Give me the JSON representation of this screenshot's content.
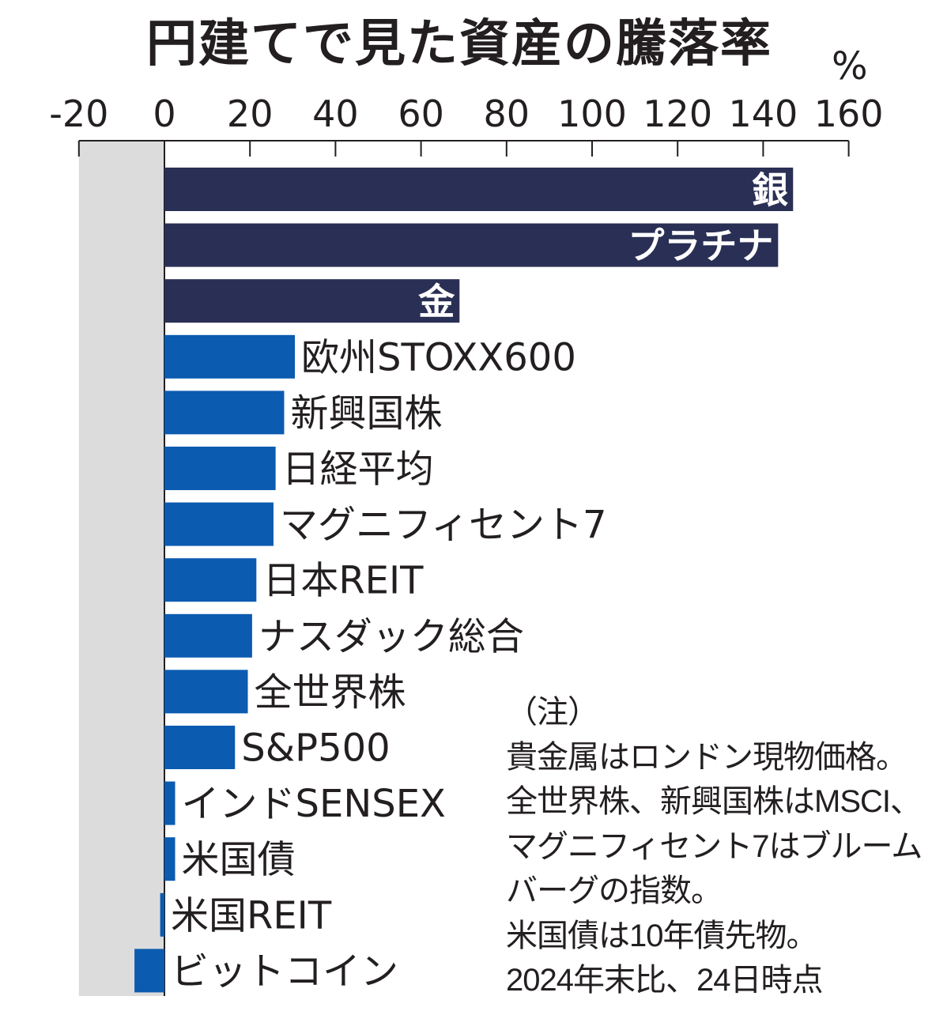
{
  "chart_data": {
    "type": "bar",
    "orientation": "horizontal",
    "title": "円建てで見た資産の騰落率",
    "unit": "%",
    "xlim": [
      -20,
      160
    ],
    "ticks": [
      "-20",
      "0",
      "20",
      "40",
      "60",
      "80",
      "100",
      "120",
      "140",
      "160"
    ],
    "categories": [
      "銀",
      "プラチナ",
      "金",
      "欧州STOXX600",
      "新興国株",
      "日経平均",
      "マグニフィセント7",
      "日本REIT",
      "ナスダック総合",
      "全世界株",
      "S&P500",
      "インドSENSEX",
      "米国債",
      "米国REIT",
      "ビットコイン"
    ],
    "values": [
      147,
      143.5,
      69,
      30.5,
      28,
      26,
      25.5,
      21.5,
      20.5,
      19.5,
      16.5,
      2.5,
      2.5,
      -1,
      -7
    ],
    "groups": [
      "precious_metal",
      "precious_metal",
      "precious_metal",
      "index",
      "index",
      "index",
      "index",
      "index",
      "index",
      "index",
      "index",
      "index",
      "index",
      "index",
      "index"
    ],
    "colors": {
      "precious_metal": "#2a2f55",
      "index": "#0b5bb0",
      "negative_band": "#dcdcdc"
    }
  },
  "note": "（注）\n貴金属はロンドン現物価格。全世界株、新興国株はMSCI、マグニフィセント7はブルームバーグの指数。\n米国債は10年債先物。\n2024年末比、24日時点"
}
